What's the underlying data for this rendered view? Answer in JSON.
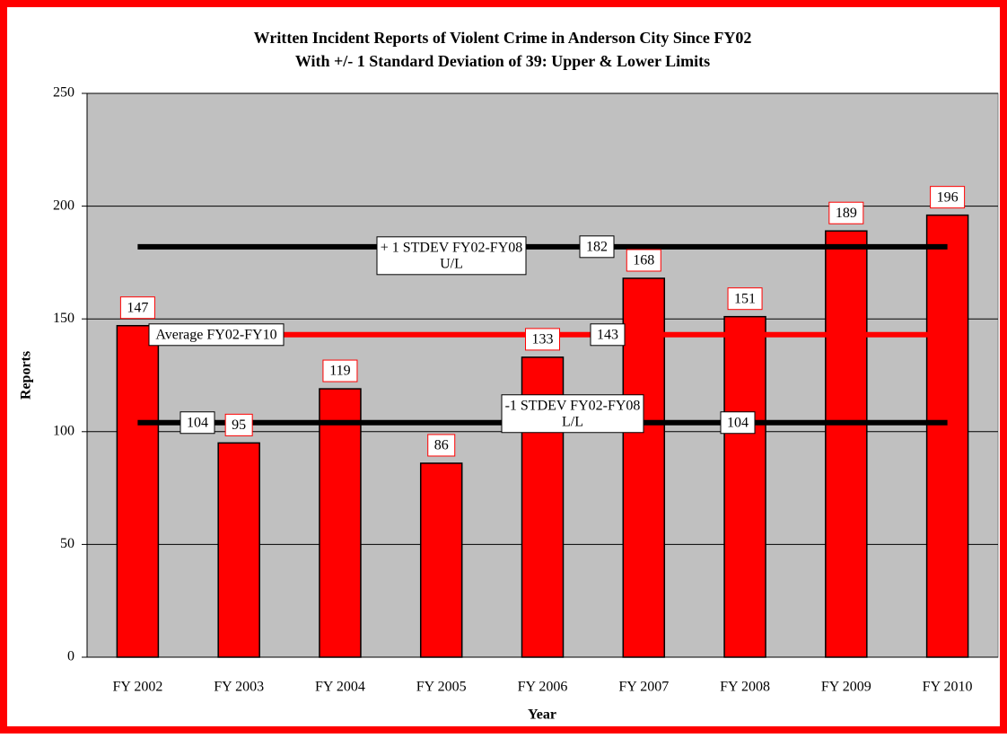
{
  "chart_data": {
    "type": "bar",
    "title": [
      "Written Incident Reports of Violent Crime in Anderson City Since FY02",
      "With +/- 1 Standard Deviation of 39: Upper & Lower Limits"
    ],
    "x_label": "Year",
    "y_label": "Reports",
    "categories": [
      "FY 2002",
      "FY 2003",
      "FY 2004",
      "FY 2005",
      "FY 2006",
      "FY 2007",
      "FY 2008",
      "FY 2009",
      "FY 2010"
    ],
    "values": [
      147,
      95,
      119,
      86,
      133,
      168,
      151,
      189,
      196
    ],
    "color": "#ff0000",
    "ylim": [
      0,
      250
    ],
    "yticks": [
      0,
      50,
      100,
      150,
      200,
      250
    ],
    "grid": true,
    "reference_lines": [
      {
        "name": [
          "+ 1 STDEV FY02-FY08",
          "U/L"
        ],
        "value": 182,
        "color": "#000000"
      },
      {
        "name": [
          "Average FY02-FY10"
        ],
        "value": 143,
        "color": "#ff0000"
      },
      {
        "name": [
          "-1 STDEV FY02-FY08",
          "L/L"
        ],
        "value": 104,
        "color": "#000000"
      }
    ]
  }
}
